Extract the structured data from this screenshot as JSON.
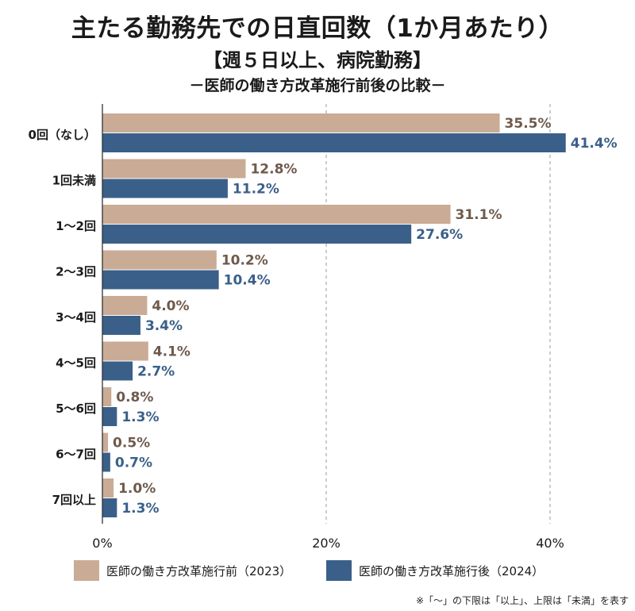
{
  "title": "主たる勤務先での日直回数（1か月あたり）",
  "subtitle": "【週５日以上、病院勤務】",
  "subtitle2": "－医師の働き方改革施行前後の比較－",
  "footnote": "※「～」の下限は「以上」、上限は「未満」を表す",
  "colors": {
    "before": "#c9ab96",
    "after": "#3a6089",
    "before_label": "#6e5a4c",
    "after_label": "#3a6089",
    "grid": "#9a9a9a",
    "axis": "#333333"
  },
  "chart_data": {
    "type": "bar",
    "orientation": "horizontal",
    "categories": [
      "0回（なし）",
      "1回未満",
      "1～2回",
      "2～3回",
      "3～4回",
      "4～5回",
      "5～6回",
      "6～7回",
      "7回以上"
    ],
    "series": [
      {
        "name": "医師の働き方改革施行前（2023）",
        "values": [
          35.5,
          12.8,
          31.1,
          10.2,
          4.0,
          4.1,
          0.8,
          0.5,
          1.0
        ],
        "labels": [
          "35.5%",
          "12.8%",
          "31.1%",
          "10.2%",
          "4.0%",
          "4.1%",
          "0.8%",
          "0.5%",
          "1.0%"
        ]
      },
      {
        "name": "医師の働き方改革施行後（2024）",
        "values": [
          41.4,
          11.2,
          27.6,
          10.4,
          3.4,
          2.7,
          1.3,
          0.7,
          1.3
        ],
        "labels": [
          "41.4%",
          "11.2%",
          "27.6%",
          "10.4%",
          "3.4%",
          "2.7%",
          "1.3%",
          "0.7%",
          "1.3%"
        ]
      }
    ],
    "xlim": [
      0,
      45
    ],
    "xticks": [
      0,
      20,
      40
    ],
    "xtick_labels": [
      "0%",
      "20%",
      "40%"
    ],
    "grid": true,
    "legend": "bottom"
  }
}
